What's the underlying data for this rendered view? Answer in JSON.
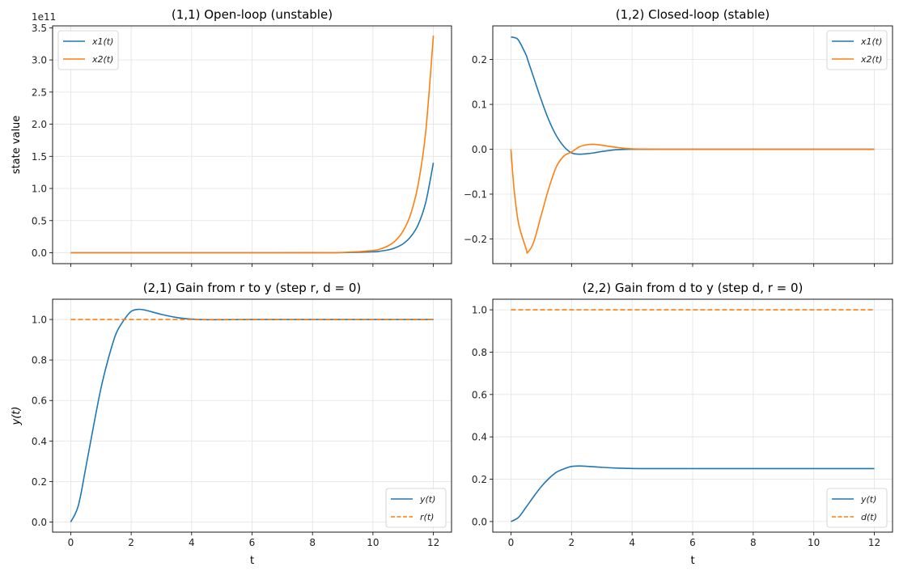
{
  "chart_data": [
    {
      "type": "line",
      "title": "(1,1) Open-loop (unstable)",
      "xlabel": "",
      "ylabel": "state value",
      "y_offset_label": "1e11",
      "xlim": [
        -0.6,
        12.6
      ],
      "ylim": [
        -17000000000.0,
        353000000000.0
      ],
      "xticks": [
        0,
        2,
        4,
        6,
        8,
        10,
        12
      ],
      "yticks": [
        0,
        50000000000.0,
        100000000000.0,
        150000000000.0,
        200000000000.0,
        250000000000.0,
        300000000000.0,
        350000000000.0
      ],
      "ytick_labels": [
        "0.0",
        "0.5",
        "1.0",
        "1.5",
        "2.0",
        "2.5",
        "3.0",
        "3.5"
      ],
      "grid": true,
      "legend": "upper-left",
      "x": [
        0,
        2,
        4,
        6,
        8,
        9,
        10,
        10.25,
        10.5,
        10.75,
        11,
        11.25,
        11.5,
        11.75,
        12
      ],
      "series": [
        {
          "name": "x1(t)",
          "color": "#1f77b4",
          "style": "solid",
          "values": [
            0,
            0,
            0,
            0,
            10000000.0,
            140000000.0,
            1400000000.0,
            2500000000.0,
            4400000000.0,
            7900000000.0,
            14000000000.0,
            25000000000.0,
            44000000000.0,
            79000000000.0,
            140000000000.0
          ]
        },
        {
          "name": "x2(t)",
          "color": "#ff7f0e",
          "style": "solid",
          "values": [
            0,
            0,
            0,
            0,
            30000000.0,
            340000000.0,
            3400000000.0,
            6000000000.0,
            10700000000.0,
            19000000000.0,
            33900000000.0,
            60300000000.0,
            107000000000.0,
            190000000000.0,
            338000000000.0
          ]
        }
      ]
    },
    {
      "type": "line",
      "title": "(1,2) Closed-loop (stable)",
      "xlabel": "",
      "ylabel": "",
      "xlim": [
        -0.6,
        12.6
      ],
      "ylim": [
        -0.255,
        0.275
      ],
      "xticks": [
        0,
        2,
        4,
        6,
        8,
        10,
        12
      ],
      "yticks": [
        -0.2,
        -0.1,
        0.0,
        0.1,
        0.2
      ],
      "ytick_labels": [
        "−0.2",
        "−0.1",
        "0.0",
        "0.1",
        "0.2"
      ],
      "grid": true,
      "legend": "upper-right",
      "x": [
        0,
        0.1,
        0.25,
        0.5,
        0.55,
        0.75,
        1,
        1.25,
        1.5,
        1.75,
        2,
        2.25,
        2.5,
        2.75,
        3,
        3.5,
        4,
        5,
        6,
        8,
        10,
        12
      ],
      "series": [
        {
          "name": "x1(t)",
          "color": "#1f77b4",
          "style": "solid",
          "values": [
            0.25,
            0.249,
            0.243,
            0.21,
            0.2,
            0.16,
            0.11,
            0.065,
            0.03,
            0.006,
            -0.008,
            -0.011,
            -0.01,
            -0.008,
            -0.005,
            -0.001,
            0.0,
            0,
            0,
            0,
            0,
            0
          ]
        },
        {
          "name": "x2(t)",
          "color": "#ff7f0e",
          "style": "solid",
          "values": [
            0,
            -0.087,
            -0.165,
            -0.222,
            -0.23,
            -0.207,
            -0.147,
            -0.087,
            -0.039,
            -0.015,
            -0.006,
            0.005,
            0.01,
            0.011,
            0.009,
            0.004,
            0.001,
            0,
            0,
            0,
            0,
            0
          ]
        }
      ]
    },
    {
      "type": "line",
      "title": "(2,1) Gain from r to y (step r, d = 0)",
      "xlabel": "t",
      "ylabel": "y(t)",
      "xlim": [
        -0.6,
        12.6
      ],
      "ylim": [
        -0.05,
        1.1
      ],
      "xticks": [
        0,
        2,
        4,
        6,
        8,
        10,
        12
      ],
      "yticks": [
        0,
        0.2,
        0.4,
        0.6,
        0.8,
        1.0
      ],
      "ytick_labels": [
        "0.0",
        "0.2",
        "0.4",
        "0.6",
        "0.8",
        "1.0"
      ],
      "grid": true,
      "legend": "lower-right",
      "x": [
        0,
        0.25,
        0.5,
        0.75,
        1,
        1.25,
        1.5,
        1.75,
        2,
        2.25,
        2.5,
        3,
        3.5,
        4,
        4.5,
        5,
        6,
        8,
        10,
        12
      ],
      "series": [
        {
          "name": "y(t)",
          "color": "#1f77b4",
          "style": "solid",
          "values": [
            0,
            0.08,
            0.27,
            0.47,
            0.66,
            0.81,
            0.93,
            0.995,
            1.04,
            1.05,
            1.045,
            1.025,
            1.01,
            1.002,
            0.999,
            0.999,
            1.0,
            1.0,
            1.0,
            1.0
          ]
        },
        {
          "name": "r(t)",
          "color": "#ff7f0e",
          "style": "dashed",
          "values": [
            1,
            1,
            1,
            1,
            1,
            1,
            1,
            1,
            1,
            1,
            1,
            1,
            1,
            1,
            1,
            1,
            1,
            1,
            1,
            1
          ]
        }
      ]
    },
    {
      "type": "line",
      "title": "(2,2) Gain from d to y (step d, r = 0)",
      "xlabel": "t",
      "ylabel": "",
      "xlim": [
        -0.6,
        12.6
      ],
      "ylim": [
        -0.05,
        1.05
      ],
      "xticks": [
        0,
        2,
        4,
        6,
        8,
        10,
        12
      ],
      "yticks": [
        0,
        0.2,
        0.4,
        0.6,
        0.8,
        1.0
      ],
      "ytick_labels": [
        "0.0",
        "0.2",
        "0.4",
        "0.6",
        "0.8",
        "1.0"
      ],
      "grid": true,
      "legend": "lower-right",
      "x": [
        0,
        0.25,
        0.5,
        0.75,
        1,
        1.25,
        1.5,
        1.75,
        2,
        2.25,
        2.5,
        3,
        3.5,
        4,
        4.5,
        5,
        6,
        8,
        10,
        12
      ],
      "series": [
        {
          "name": "y(t)",
          "color": "#1f77b4",
          "style": "solid",
          "values": [
            0,
            0.02,
            0.068,
            0.118,
            0.165,
            0.203,
            0.233,
            0.249,
            0.26,
            0.2625,
            0.261,
            0.256,
            0.2525,
            0.2505,
            0.25,
            0.25,
            0.25,
            0.25,
            0.25,
            0.25
          ]
        },
        {
          "name": "d(t)",
          "color": "#ff7f0e",
          "style": "dashed",
          "values": [
            1,
            1,
            1,
            1,
            1,
            1,
            1,
            1,
            1,
            1,
            1,
            1,
            1,
            1,
            1,
            1,
            1,
            1,
            1,
            1
          ]
        }
      ]
    }
  ]
}
